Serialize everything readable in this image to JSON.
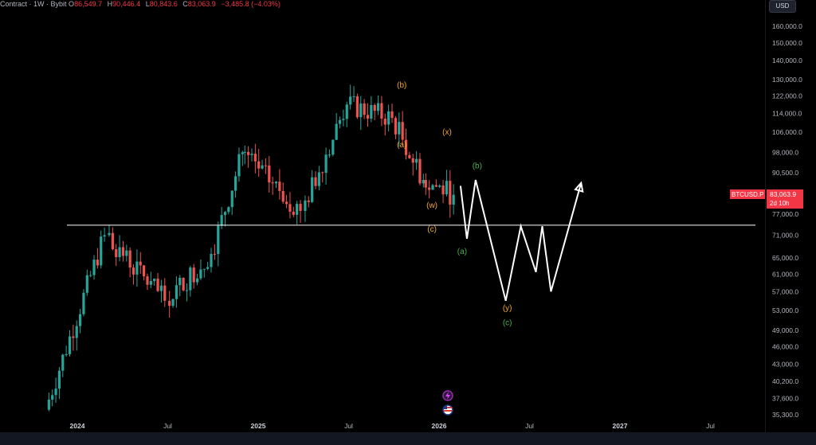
{
  "header": {
    "symbol_text": "Contract · 1W · Bybit",
    "open_label": "O",
    "open_value": "86,549.7",
    "high_label": "H",
    "high_value": "90,446.4",
    "low_label": "L",
    "low_value": "80,843.6",
    "close_label": "C",
    "close_value": "83,063.9",
    "change_value": "−3,485.8 (−4.03%)"
  },
  "currency_button": "USD",
  "price_tag": {
    "symbol": "BTCUSD.P",
    "price": "83,063.9",
    "countdown": "2d 10h",
    "color": "#f23645"
  },
  "colors": {
    "up": "#26a69a",
    "down": "#ef5350",
    "orange_label": "#f5a623",
    "green_label": "#4caf50",
    "projection": "#ffffff"
  },
  "icons": [
    "lightning-icon",
    "us-flag-icon"
  ],
  "chart_data": {
    "type": "candlestick",
    "scale": "log",
    "ylim": [
      35300,
      165000
    ],
    "y_ticks": [
      160000,
      150000,
      140000,
      130000,
      122000,
      114000,
      106000,
      98000,
      90500,
      77000,
      71000,
      65000,
      61000,
      57000,
      53000,
      49000,
      46000,
      43000,
      40200,
      37600,
      35300
    ],
    "y_tick_labels": [
      "160,000.0",
      "150,000.0",
      "140,000.0",
      "130,000.0",
      "122,000.0",
      "114,000.0",
      "106,000.0",
      "98,000.0",
      "90,500.0",
      "77,000.0",
      "71,000.0",
      "65,000.0",
      "61,000.0",
      "57,000.0",
      "53,000.0",
      "49,000.0",
      "46,000.0",
      "43,000.0",
      "40,200.0",
      "37,600.0",
      "35,300.0"
    ],
    "x_ticks": [
      {
        "label": "2024",
        "date": "2024-01"
      },
      {
        "label": "Jul",
        "date": "2024-07"
      },
      {
        "label": "2025",
        "date": "2025-01"
      },
      {
        "label": "Jul",
        "date": "2025-07"
      },
      {
        "label": "2026",
        "date": "2026-01"
      },
      {
        "label": "Jul",
        "date": "2026-07"
      },
      {
        "label": "2027",
        "date": "2027-01"
      },
      {
        "label": "Jul",
        "date": "2027-07"
      }
    ],
    "x_tick_bold": [
      true,
      false,
      true,
      false,
      true,
      false,
      true,
      false
    ],
    "support_level": 73800,
    "candle_segments": [
      {
        "start": "2023-11",
        "end": "2024-03",
        "o": 36000,
        "c": 71000
      },
      {
        "start": "2024-03",
        "end": "2024-07",
        "o": 71000,
        "c": 55000
      },
      {
        "start": "2024-07",
        "end": "2024-10",
        "o": 55000,
        "c": 66000
      },
      {
        "start": "2024-10",
        "end": "2024-12",
        "o": 66000,
        "c": 98000
      },
      {
        "start": "2024-12",
        "end": "2025-04",
        "o": 98000,
        "c": 78000
      },
      {
        "start": "2025-04",
        "end": "2025-07",
        "o": 78000,
        "c": 118000
      },
      {
        "start": "2025-07",
        "end": "2025-10",
        "o": 118000,
        "c": 112000
      },
      {
        "start": "2025-10",
        "end": "2025-12",
        "o": 112000,
        "c": 88000
      },
      {
        "start": "2025-12",
        "end": "2026-02",
        "o": 88000,
        "c": 83063.9
      }
    ],
    "last_close": 83063.9,
    "projection": [
      {
        "date": "2026-02",
        "price": 86000
      },
      {
        "date": "2026-02",
        "price": 70000
      },
      {
        "date": "2026-03",
        "price": 88000
      },
      {
        "date": "2026-05",
        "price": 55000
      },
      {
        "date": "2026-06",
        "price": 73500
      },
      {
        "date": "2026-07",
        "price": 61500
      },
      {
        "date": "2026-07",
        "price": 73500
      },
      {
        "date": "2026-08",
        "price": 57000
      },
      {
        "date": "2026-10",
        "price": 87000
      }
    ],
    "annotations": [
      {
        "text": "(b)",
        "date": "2025-10",
        "price": 126000,
        "color": "orange"
      },
      {
        "text": "(a)",
        "date": "2025-10",
        "price": 100000,
        "color": "orange"
      },
      {
        "text": "(x)",
        "date": "2026-01",
        "price": 105000,
        "color": "orange"
      },
      {
        "text": "(w)",
        "date": "2025-12",
        "price": 79000,
        "color": "orange"
      },
      {
        "text": "(c)",
        "date": "2025-12",
        "price": 72000,
        "color": "orange"
      },
      {
        "text": "(b)",
        "date": "2026-03",
        "price": 92000,
        "color": "green"
      },
      {
        "text": "(a)",
        "date": "2026-02",
        "price": 66000,
        "color": "green"
      },
      {
        "text": "(y)",
        "date": "2026-05",
        "price": 53000,
        "color": "orange"
      },
      {
        "text": "(c)",
        "date": "2026-05",
        "price": 50000,
        "color": "green"
      }
    ]
  }
}
